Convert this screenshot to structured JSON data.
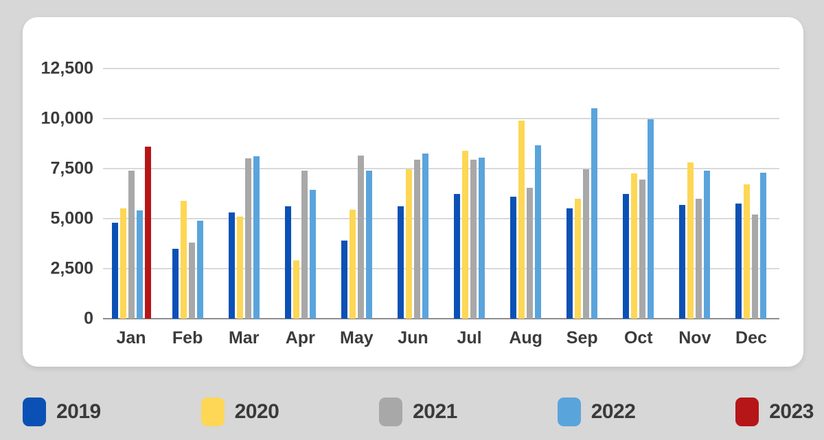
{
  "chart_data": {
    "type": "bar",
    "categories": [
      "Jan",
      "Feb",
      "Mar",
      "Apr",
      "May",
      "Jun",
      "Jul",
      "Aug",
      "Sep",
      "Oct",
      "Nov",
      "Dec"
    ],
    "series": [
      {
        "name": "2019",
        "color": "#0b51b5",
        "values": [
          4800,
          3500,
          5300,
          5600,
          3900,
          5600,
          6250,
          6100,
          5500,
          6250,
          5700,
          5750
        ]
      },
      {
        "name": "2020",
        "color": "#fdd755",
        "values": [
          5500,
          5900,
          5100,
          2900,
          5450,
          7450,
          8400,
          9900,
          6000,
          7250,
          7800,
          6700
        ]
      },
      {
        "name": "2021",
        "color": "#a8a8a8",
        "values": [
          7400,
          3800,
          8000,
          7400,
          8150,
          7950,
          7950,
          6550,
          7450,
          6950,
          6000,
          5200
        ]
      },
      {
        "name": "2022",
        "color": "#5aa4dc",
        "values": [
          5400,
          4900,
          8100,
          6450,
          7400,
          8250,
          8050,
          8650,
          10500,
          9950,
          7400,
          7300
        ]
      },
      {
        "name": "2023",
        "color": "#b61618",
        "values": [
          8600,
          null,
          null,
          null,
          null,
          null,
          null,
          null,
          null,
          null,
          null,
          null
        ]
      }
    ],
    "y_ticks": [
      {
        "label": "12,500",
        "value": 12500
      },
      {
        "label": "10,000",
        "value": 10000
      },
      {
        "label": "7,500",
        "value": 7500
      },
      {
        "label": "5,000",
        "value": 5000
      },
      {
        "label": "2,500",
        "value": 2500
      },
      {
        "label": "0",
        "value": 0
      }
    ],
    "ylim": [
      0,
      12500
    ],
    "grid": true,
    "legend_position": "bottom",
    "colors": {
      "page_background": "#d7d7d7",
      "card_background": "#ffffff",
      "gridline": "#d9d9d9",
      "axis_line": "#8c8c8c",
      "text": "#3b3b3b"
    }
  }
}
